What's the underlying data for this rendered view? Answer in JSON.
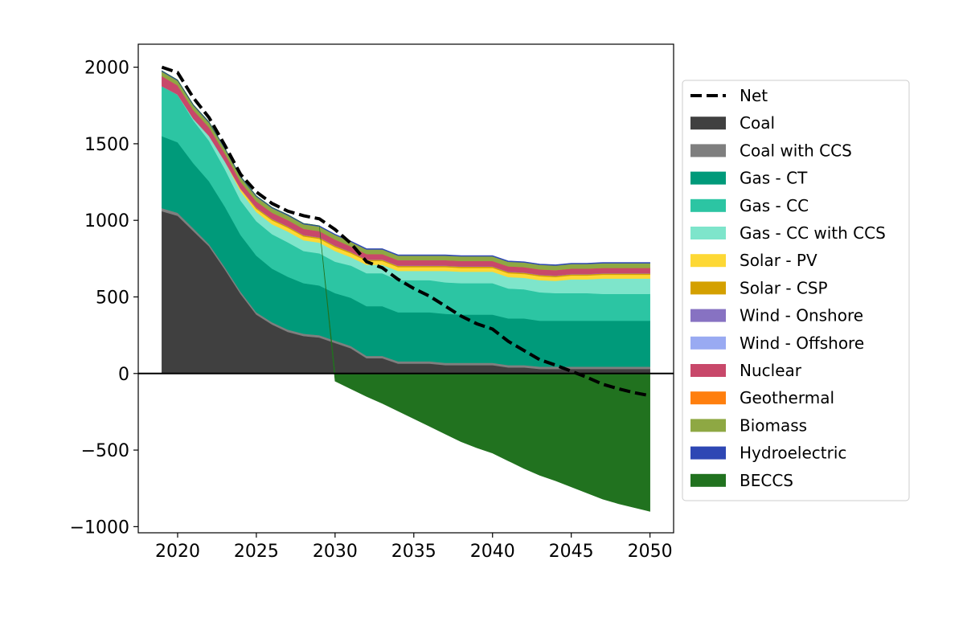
{
  "chart_data": {
    "type": "area",
    "stacked": true,
    "title": "",
    "xlabel": "",
    "ylabel": "",
    "xlim": [
      2017.5,
      2051.5
    ],
    "ylim": [
      -1040,
      2150
    ],
    "x": [
      2019,
      2020,
      2021,
      2022,
      2023,
      2024,
      2025,
      2026,
      2027,
      2028,
      2029,
      2030,
      2031,
      2032,
      2033,
      2034,
      2035,
      2036,
      2037,
      2038,
      2039,
      2040,
      2041,
      2042,
      2043,
      2044,
      2045,
      2046,
      2047,
      2048,
      2049,
      2050
    ],
    "x_ticks": [
      2020,
      2025,
      2030,
      2035,
      2040,
      2045,
      2050
    ],
    "x_tick_labels": [
      "2020",
      "2025",
      "2030",
      "2035",
      "2040",
      "2045",
      "2050"
    ],
    "y_ticks": [
      -1000,
      -500,
      0,
      500,
      1000,
      1500,
      2000
    ],
    "y_tick_labels": [
      "−1000",
      "−500",
      "0",
      "500",
      "1000",
      "1500",
      "2000"
    ],
    "grid": false,
    "legend_position": "center-right outside",
    "series": [
      {
        "name": "Coal",
        "color": "#404040",
        "values": [
          1060,
          1030,
          930,
          830,
          680,
          520,
          385,
          320,
          272,
          245,
          235,
          200,
          165,
          100,
          100,
          65,
          65,
          65,
          55,
          55,
          55,
          55,
          40,
          40,
          30,
          30,
          30,
          30,
          30,
          30,
          30,
          30
        ]
      },
      {
        "name": "Coal with CCS",
        "color": "#7f7f7f",
        "values": [
          20,
          20,
          18,
          15,
          15,
          15,
          15,
          15,
          15,
          15,
          15,
          15,
          15,
          15,
          15,
          15,
          15,
          15,
          15,
          15,
          15,
          15,
          15,
          15,
          15,
          15,
          15,
          15,
          15,
          15,
          15,
          15
        ]
      },
      {
        "name": "Gas - CT",
        "color": "#009a7a",
        "values": [
          470,
          460,
          425,
          410,
          395,
          370,
          370,
          350,
          345,
          330,
          325,
          310,
          315,
          325,
          325,
          320,
          320,
          320,
          320,
          315,
          315,
          315,
          305,
          305,
          300,
          300,
          300,
          300,
          300,
          300,
          300,
          300
        ]
      },
      {
        "name": "Gas - CC",
        "color": "#2cc5a3",
        "values": [
          325,
          310,
          280,
          265,
          245,
          225,
          225,
          225,
          225,
          210,
          210,
          205,
          210,
          215,
          215,
          210,
          210,
          210,
          205,
          205,
          205,
          205,
          195,
          190,
          185,
          180,
          180,
          180,
          175,
          175,
          175,
          175
        ]
      },
      {
        "name": "Gas - CC with CCS",
        "color": "#7ee5cb",
        "values": [
          0,
          0,
          10,
          30,
          50,
          60,
          60,
          65,
          70,
          70,
          70,
          70,
          55,
          55,
          55,
          60,
          60,
          60,
          75,
          75,
          75,
          75,
          75,
          75,
          80,
          80,
          90,
          90,
          100,
          100,
          100,
          100
        ]
      },
      {
        "name": "Solar - PV",
        "color": "#fdd835",
        "values": [
          0,
          0,
          0,
          0,
          0,
          15,
          20,
          25,
          25,
          25,
          25,
          25,
          25,
          25,
          25,
          25,
          25,
          25,
          25,
          25,
          25,
          25,
          25,
          25,
          25,
          25,
          25,
          25,
          25,
          25,
          25,
          25
        ]
      },
      {
        "name": "Solar - CSP",
        "color": "#d4a000",
        "values": [
          0,
          0,
          0,
          0,
          0,
          0,
          8,
          8,
          8,
          8,
          8,
          8,
          8,
          8,
          8,
          8,
          8,
          8,
          8,
          8,
          8,
          8,
          8,
          8,
          8,
          8,
          8,
          8,
          8,
          8,
          8,
          8
        ]
      },
      {
        "name": "Wind - Onshore",
        "color": "#8772c2",
        "values": [
          2,
          2,
          2,
          2,
          2,
          2,
          2,
          2,
          2,
          2,
          2,
          2,
          2,
          2,
          2,
          2,
          2,
          2,
          2,
          2,
          2,
          2,
          2,
          2,
          2,
          2,
          2,
          2,
          2,
          2,
          2,
          2
        ]
      },
      {
        "name": "Wind - Offshore",
        "color": "#99aaf2",
        "values": [
          0,
          0,
          0,
          0,
          0,
          0,
          0,
          0,
          0,
          0,
          0,
          0,
          0,
          0,
          0,
          0,
          0,
          0,
          0,
          0,
          0,
          0,
          0,
          0,
          0,
          0,
          0,
          0,
          0,
          0,
          0,
          0
        ]
      },
      {
        "name": "Nuclear",
        "color": "#c8486a",
        "values": [
          65,
          60,
          55,
          55,
          50,
          45,
          40,
          40,
          40,
          40,
          40,
          40,
          35,
          35,
          35,
          35,
          35,
          35,
          35,
          35,
          35,
          35,
          35,
          35,
          35,
          35,
          35,
          35,
          35,
          35,
          35,
          35
        ]
      },
      {
        "name": "Geothermal",
        "color": "#ff7f0e",
        "values": [
          0,
          0,
          0,
          0,
          0,
          0,
          0,
          0,
          0,
          0,
          0,
          0,
          0,
          0,
          0,
          0,
          0,
          0,
          0,
          0,
          0,
          0,
          0,
          0,
          0,
          0,
          0,
          0,
          0,
          0,
          0,
          0
        ]
      },
      {
        "name": "Biomass",
        "color": "#8ea843",
        "values": [
          30,
          30,
          30,
          30,
          30,
          30,
          30,
          30,
          30,
          30,
          30,
          30,
          30,
          30,
          30,
          30,
          30,
          30,
          30,
          30,
          30,
          30,
          30,
          30,
          30,
          30,
          30,
          30,
          30,
          30,
          30,
          30
        ]
      },
      {
        "name": "Hydroelectric",
        "color": "#2e47b4",
        "values": [
          5,
          5,
          5,
          5,
          5,
          5,
          5,
          5,
          5,
          5,
          5,
          5,
          5,
          5,
          5,
          5,
          5,
          5,
          5,
          5,
          5,
          5,
          5,
          5,
          5,
          5,
          5,
          5,
          5,
          5,
          5,
          5
        ]
      },
      {
        "name": "BECCS",
        "color": "#21721f",
        "values": [
          0,
          0,
          0,
          0,
          0,
          0,
          0,
          0,
          0,
          0,
          0,
          -50,
          -100,
          -150,
          -195,
          -245,
          -295,
          -345,
          -395,
          -445,
          -485,
          -520,
          -570,
          -620,
          -665,
          -700,
          -740,
          -780,
          -820,
          -850,
          -875,
          -900
        ]
      }
    ],
    "net": {
      "name": "Net",
      "color": "#000000",
      "values": [
        2000,
        1965,
        1800,
        1670,
        1490,
        1300,
        1185,
        1110,
        1060,
        1030,
        1010,
        940,
        850,
        730,
        690,
        615,
        555,
        505,
        440,
        375,
        325,
        290,
        210,
        150,
        90,
        55,
        15,
        -25,
        -70,
        -100,
        -125,
        -145
      ]
    }
  }
}
